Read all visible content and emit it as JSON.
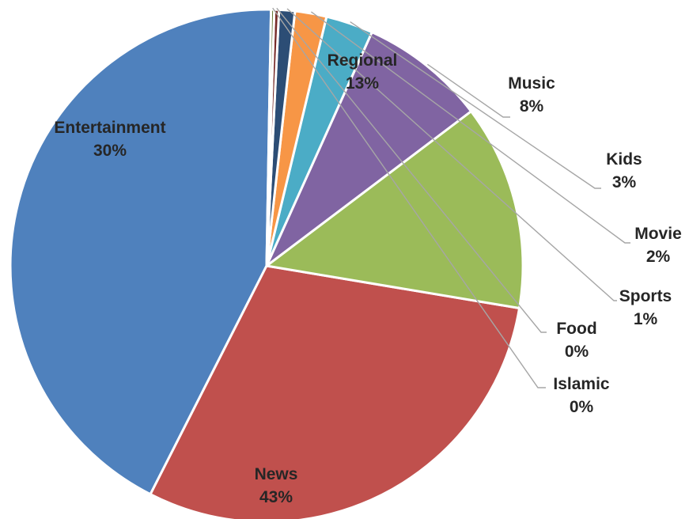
{
  "chart_data": {
    "type": "pie",
    "categories": [
      "News",
      "Entertainment",
      "Regional",
      "Music",
      "Kids",
      "Movie",
      "Sports",
      "Food",
      "Islamic"
    ],
    "values": [
      43,
      30,
      13,
      8,
      3,
      2,
      1,
      0.3,
      0.2
    ],
    "value_labels": [
      "43%",
      "30%",
      "13%",
      "8%",
      "3%",
      "2%",
      "1%",
      "0%",
      "0%"
    ],
    "colors": [
      "#4f81bd",
      "#c0504d",
      "#9bbb59",
      "#8064a2",
      "#4bacc6",
      "#f79646",
      "#2c4d75",
      "#772c2a",
      "#5f7530"
    ],
    "legend": "none",
    "data_labels": "category name and percentage"
  }
}
